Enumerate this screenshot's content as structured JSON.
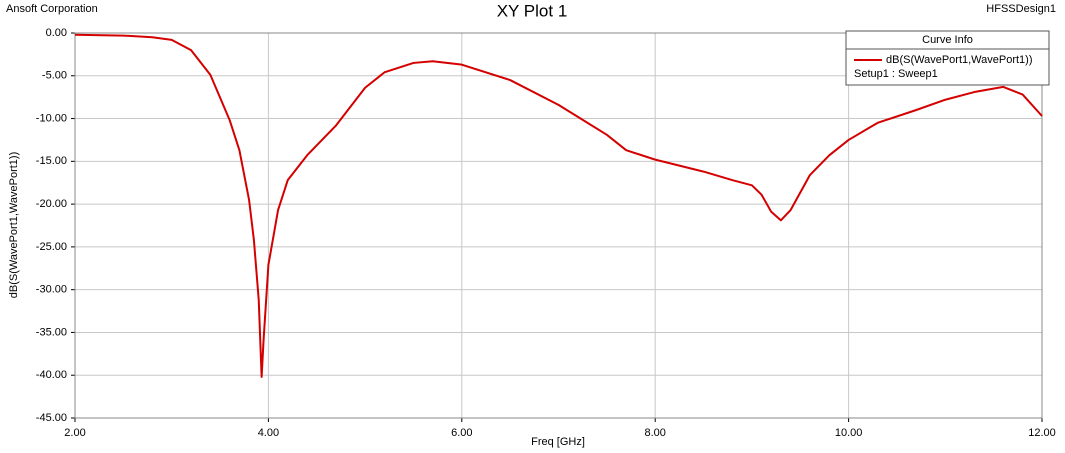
{
  "chart_data": {
    "type": "line",
    "company": "Ansoft Corporation",
    "title": "XY Plot 1",
    "design": "HFSSDesign1",
    "xlabel": "Freq [GHz]",
    "ylabel": "dB(S(WavePort1,WavePort1))",
    "legend_title": "Curve Info",
    "legend_position": "upper right",
    "grid": true,
    "x": [
      2.0,
      2.5,
      2.8,
      3.0,
      3.2,
      3.4,
      3.6,
      3.7,
      3.8,
      3.85,
      3.9,
      3.93,
      3.95,
      4.0,
      4.1,
      4.2,
      4.4,
      4.7,
      5.0,
      5.2,
      5.5,
      5.7,
      6.0,
      6.5,
      7.0,
      7.5,
      7.7,
      8.0,
      8.5,
      8.8,
      9.0,
      9.1,
      9.2,
      9.3,
      9.4,
      9.6,
      9.8,
      10.0,
      10.3,
      10.7,
      11.0,
      11.3,
      11.6,
      11.8,
      12.0
    ],
    "series": [
      {
        "name": "dB(S(WavePort1,WavePort1))",
        "setup": "Setup1 : Sweep1",
        "color": "#d40000",
        "values": [
          -0.2,
          -0.3,
          -0.5,
          -0.8,
          -2.0,
          -4.9,
          -10.2,
          -13.7,
          -19.5,
          -24.2,
          -31.2,
          -40.2,
          -35.9,
          -27.1,
          -20.7,
          -17.2,
          -14.3,
          -10.8,
          -6.4,
          -4.6,
          -3.5,
          -3.3,
          -3.7,
          -5.5,
          -8.4,
          -11.9,
          -13.7,
          -14.8,
          -16.2,
          -17.2,
          -17.8,
          -18.9,
          -20.9,
          -21.9,
          -20.7,
          -16.6,
          -14.3,
          -12.5,
          -10.5,
          -9.0,
          -7.8,
          -6.9,
          -6.3,
          -7.2,
          -9.7
        ]
      }
    ],
    "xlim": [
      2,
      12
    ],
    "xticks": [
      {
        "value": 2,
        "label": "2.00"
      },
      {
        "value": 4,
        "label": "4.00"
      },
      {
        "value": 6,
        "label": "6.00"
      },
      {
        "value": 8,
        "label": "8.00"
      },
      {
        "value": 10,
        "label": "10.00"
      },
      {
        "value": 12,
        "label": "12.00"
      }
    ],
    "ylim": [
      -45,
      0
    ],
    "yticks": [
      {
        "value": 0,
        "label": "0.00"
      },
      {
        "value": -5,
        "label": "-5.00"
      },
      {
        "value": -10,
        "label": "-10.00"
      },
      {
        "value": -15,
        "label": "-15.00"
      },
      {
        "value": -20,
        "label": "-20.00"
      },
      {
        "value": -25,
        "label": "-25.00"
      },
      {
        "value": -30,
        "label": "-30.00"
      },
      {
        "value": -35,
        "label": "-35.00"
      },
      {
        "value": -40,
        "label": "-40.00"
      },
      {
        "value": -45,
        "label": "-45.00"
      }
    ]
  }
}
